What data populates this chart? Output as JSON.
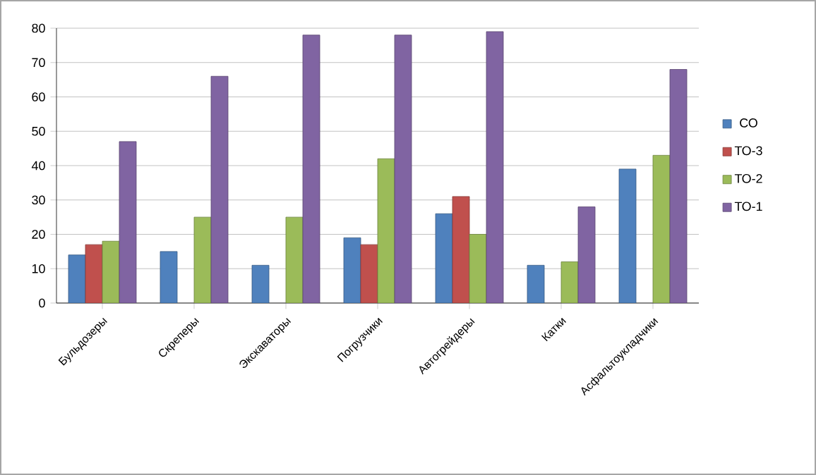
{
  "chart_data": {
    "type": "bar",
    "categories": [
      "Бульдозеры",
      "Скреперы",
      "Экскаваторы",
      "Погрузчики",
      "Автогрейдеры",
      "Катки",
      "Асфальтоукладчики"
    ],
    "series": [
      {
        "name": "СО",
        "color": "#4f81bd",
        "values": [
          14,
          15,
          11,
          19,
          26,
          11,
          39
        ]
      },
      {
        "name": "ТО-3",
        "color": "#c0504d",
        "values": [
          17,
          null,
          null,
          17,
          31,
          null,
          null
        ]
      },
      {
        "name": "ТО-2",
        "color": "#9bbb59",
        "values": [
          18,
          25,
          25,
          42,
          20,
          12,
          43
        ]
      },
      {
        "name": "ТО-1",
        "color": "#8064a2",
        "values": [
          47,
          66,
          78,
          78,
          79,
          28,
          68
        ]
      }
    ],
    "ylim": [
      0,
      80
    ],
    "yticks": [
      0,
      10,
      20,
      30,
      40,
      50,
      60,
      70,
      80
    ],
    "grid": "y",
    "legend": "right"
  }
}
